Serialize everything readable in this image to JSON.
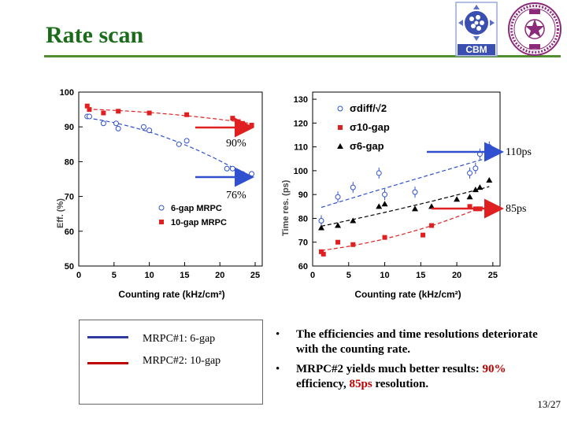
{
  "slide": {
    "title": "Rate scan",
    "page_number": "13/27"
  },
  "logos": {
    "cbm_text": "CBM"
  },
  "annotations": {
    "eff_upper": "90%",
    "eff_lower": "76%",
    "res_upper": "110ps",
    "res_lower": "85ps"
  },
  "legend": {
    "items": [
      {
        "label": "MRPC#1: 6-gap",
        "color": "#2f3aa0"
      },
      {
        "label": "MRPC#2: 10-gap",
        "color": "#c00000"
      }
    ]
  },
  "bullets": {
    "b1": "The efficiencies and time resolutions deteriorate with the counting rate.",
    "b2_pre": "MRPC#2 yields much better results:",
    "b2_eff": "90%",
    "b2_mid": "efficiency,",
    "b2_res": "85ps",
    "b2_post": "resolution."
  },
  "colors": {
    "title": "#1a6b1a",
    "rule": "#4f8f2f",
    "red": "#c00000",
    "arrow_red": "#e02020",
    "arrow_blue": "#3050d0"
  },
  "chart_data": [
    {
      "type": "scatter",
      "xlabel": "Counting rate (kHz/cm²)",
      "ylabel": "Eff. (%)",
      "xlim": [
        0,
        26
      ],
      "ylim": [
        50,
        100
      ],
      "xticks": [
        0,
        5,
        10,
        15,
        20,
        25
      ],
      "yticks": [
        50,
        60,
        70,
        80,
        90,
        100
      ],
      "legend_position": "bottom-center",
      "series": [
        {
          "name": "6-gap MRPC",
          "marker": "open-circle",
          "color": "#3050d0",
          "x": [
            1.2,
            1.5,
            3.5,
            5.3,
            5.6,
            9.2,
            10.0,
            14.2,
            15.3,
            21.0,
            21.8,
            22.6,
            23.2,
            24.5
          ],
          "y": [
            93,
            93,
            91,
            91,
            89.5,
            90,
            89,
            85,
            86,
            78,
            78,
            77,
            76.5,
            76.5
          ]
        },
        {
          "name": "10-gap MRPC",
          "marker": "filled-square",
          "color": "#e02020",
          "x": [
            1.2,
            1.5,
            3.5,
            5.6,
            10.0,
            15.3,
            21.8,
            22.6,
            23.2,
            24.5
          ],
          "y": [
            96,
            95,
            94,
            94.5,
            94,
            93.5,
            92.5,
            91.5,
            91,
            90.5
          ]
        }
      ]
    },
    {
      "type": "scatter",
      "xlabel": "Counting rate (kHz/cm²)",
      "ylabel": "Time res. (ps)",
      "xlim": [
        0,
        26
      ],
      "ylim": [
        60,
        133
      ],
      "xticks": [
        0,
        5,
        10,
        15,
        20,
        25
      ],
      "yticks": [
        60,
        70,
        80,
        90,
        100,
        110,
        120,
        130
      ],
      "legend_position": "top-right",
      "series": [
        {
          "name": "σdiff/√2",
          "marker": "open-circle-errorbar",
          "color": "#3050d0",
          "x": [
            1.2,
            3.5,
            5.6,
            9.2,
            10.0,
            14.2,
            21.8,
            22.6,
            23.2,
            24.5
          ],
          "y": [
            79,
            89,
            93,
            99,
            90,
            91,
            99,
            101,
            107,
            110
          ]
        },
        {
          "name": "σ10-gap",
          "marker": "filled-square",
          "color": "#e02020",
          "x": [
            1.2,
            1.5,
            3.5,
            5.6,
            10.0,
            15.3,
            16.5,
            21.8,
            22.6,
            23.2,
            24.5
          ],
          "y": [
            66,
            65,
            70,
            69,
            72,
            73,
            77,
            85,
            84,
            84,
            85
          ]
        },
        {
          "name": "σ6-gap",
          "marker": "filled-triangle",
          "color": "#000000",
          "x": [
            1.2,
            3.5,
            5.6,
            9.2,
            10.0,
            14.2,
            16.5,
            20.0,
            21.8,
            22.6,
            23.2,
            24.5
          ],
          "y": [
            76,
            77,
            79,
            85,
            86,
            84,
            85,
            88,
            89,
            92,
            93,
            96
          ]
        }
      ]
    }
  ]
}
